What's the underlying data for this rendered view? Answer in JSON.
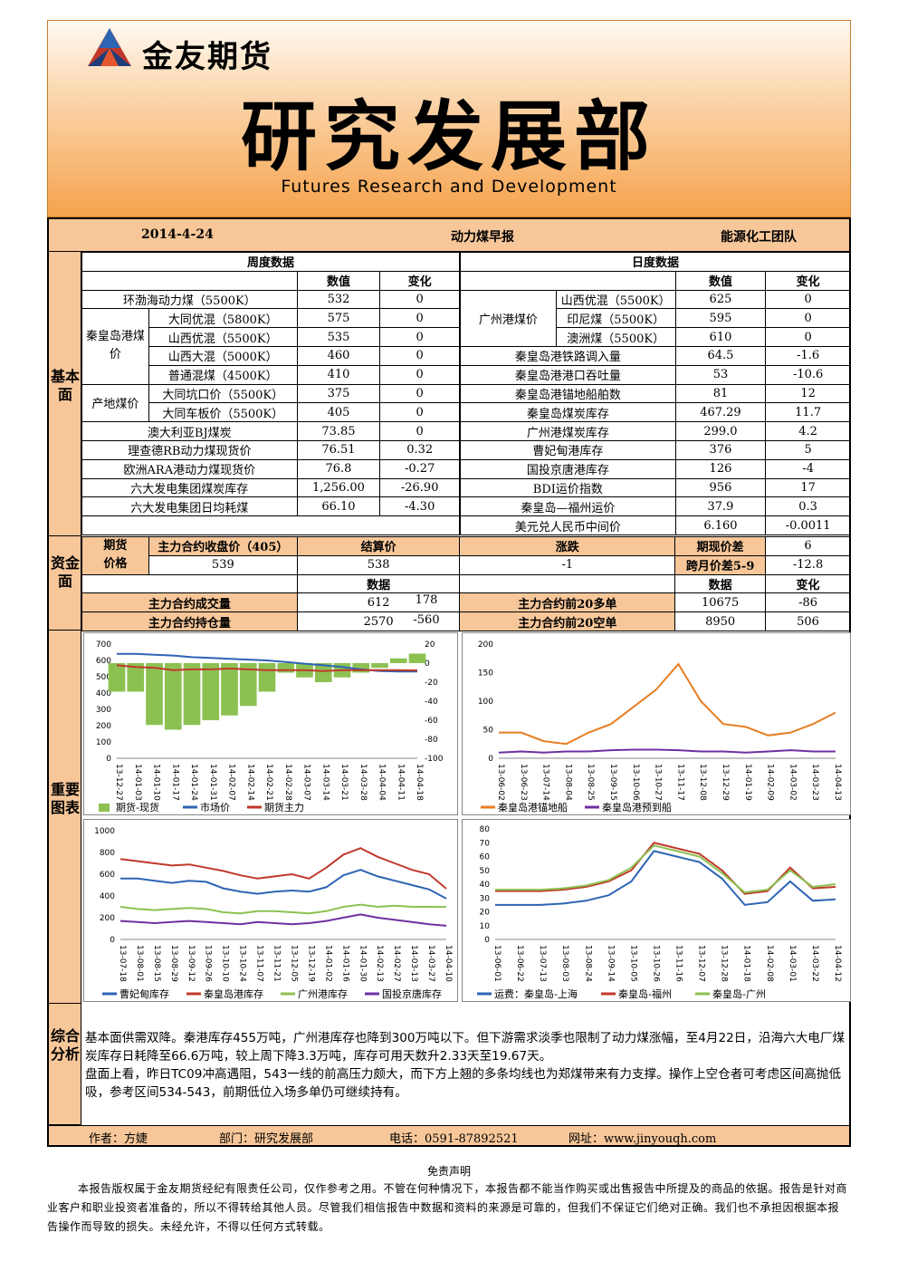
{
  "header": {
    "company": "金友期货",
    "dept_title": "研究发展部",
    "dept_subtitle": "Futures Research and Development"
  },
  "report": {
    "date": "2014-4-24",
    "title": "动力煤早报",
    "team": "能源化工团队"
  },
  "sections": {
    "fundamental": "基本面",
    "capital": "资金面",
    "charts": "重要图表",
    "analysis": "综合分析"
  },
  "weekly": {
    "header": "周度数据",
    "col_value": "数值",
    "col_change": "变化",
    "group_qhd": "秦皇岛港煤价",
    "group_origin": "产地煤价",
    "rows": [
      {
        "label": "环渤海动力煤（5500K）",
        "value": "532",
        "change": "0"
      },
      {
        "label": "大同优混（5800K）",
        "value": "575",
        "change": "0"
      },
      {
        "label": "山西优混（5500K）",
        "value": "535",
        "change": "0"
      },
      {
        "label": "山西大混（5000K）",
        "value": "460",
        "change": "0"
      },
      {
        "label": "普通混煤（4500K）",
        "value": "410",
        "change": "0"
      },
      {
        "label": "大同坑口价（5500K）",
        "value": "375",
        "change": "0"
      },
      {
        "label": "大同车板价（5500K）",
        "value": "405",
        "change": "0"
      },
      {
        "label": "澳大利亚BJ煤炭",
        "value": "73.85",
        "change": "0"
      },
      {
        "label": "理查德RB动力煤现货价",
        "value": "76.51",
        "change": "0.32"
      },
      {
        "label": "欧洲ARA港动力煤现货价",
        "value": "76.8",
        "change": "-0.27"
      },
      {
        "label": "六大发电集团煤炭库存",
        "value": "1,256.00",
        "change": "-26.90"
      },
      {
        "label": "六大发电集团日均耗煤",
        "value": "66.10",
        "change": "-4.30"
      }
    ]
  },
  "daily": {
    "header": "日度数据",
    "col_value": "数值",
    "col_change": "变化",
    "group_gz": "广州港煤价",
    "rows": [
      {
        "label": "山西优混（5500K）",
        "value": "625",
        "change": "0"
      },
      {
        "label": "印尼煤（5500K）",
        "value": "595",
        "change": "0"
      },
      {
        "label": "澳洲煤（5500K）",
        "value": "610",
        "change": "0"
      },
      {
        "label": "秦皇岛港铁路调入量",
        "value": "64.5",
        "change": "-1.6"
      },
      {
        "label": "秦皇岛港港口吞吐量",
        "value": "53",
        "change": "-10.6"
      },
      {
        "label": "秦皇岛港锚地船舶数",
        "value": "81",
        "change": "12"
      },
      {
        "label": "秦皇岛煤炭库存",
        "value": "467.29",
        "change": "11.7"
      },
      {
        "label": "广州港煤炭库存",
        "value": "299.0",
        "change": "4.2"
      },
      {
        "label": "曹妃甸港库存",
        "value": "376",
        "change": "5"
      },
      {
        "label": "国投京唐港库存",
        "value": "126",
        "change": "-4"
      },
      {
        "label": "BDI运价指数",
        "value": "956",
        "change": "17"
      },
      {
        "label": "秦皇岛—福州运价",
        "value": "37.9",
        "change": "0.3"
      },
      {
        "label": "美元兑人民币中间价",
        "value": "6.160",
        "change": "-0.0011"
      }
    ]
  },
  "capital": {
    "futures_price_label1": "期货",
    "futures_price_label2": "价格",
    "close_label": "主力合约收盘价（405）",
    "close_value": "539",
    "settle_label": "结算价",
    "settle_value": "538",
    "change_label": "涨跌",
    "change_value": "-1",
    "spot_basis_label": "期现价差",
    "spot_basis_value": "6",
    "spread_label": "跨月价差5-9",
    "spread_value": "-12.8",
    "col_data": "数据",
    "col_change": "变化",
    "volume_label": "主力合约成交量",
    "volume_value": "612",
    "volume_change": "178",
    "oi_label": "主力合约持仓量",
    "oi_value": "2570",
    "oi_change": "-560",
    "long20_label": "主力合约前20多单",
    "long20_value": "10675",
    "long20_change": "-86",
    "short20_label": "主力合约前20空单",
    "short20_value": "8950",
    "short20_change": "506"
  },
  "chart_data": [
    {
      "type": "line",
      "x": [
        "13-12-27",
        "14-01-03",
        "14-01-10",
        "14-01-17",
        "14-01-24",
        "14-01-31",
        "14-02-07",
        "14-02-14",
        "14-02-21",
        "14-02-28",
        "14-03-07",
        "14-03-14",
        "14-03-21",
        "14-03-28",
        "14-04-04",
        "14-04-11",
        "14-04-18"
      ],
      "ylim": [
        0,
        700
      ],
      "y2lim": [
        -100,
        20
      ],
      "yticks": [
        "0",
        "100",
        "200",
        "300",
        "400",
        "500",
        "600",
        "700"
      ],
      "y2ticks": [
        "-100",
        "-80",
        "-60",
        "-40",
        "-20",
        "0",
        "20"
      ],
      "series": [
        {
          "name": "期货-现货",
          "type": "area",
          "axis": "right",
          "color": "#8cc152",
          "values": [
            -30,
            -30,
            -65,
            -70,
            -65,
            -60,
            -55,
            -45,
            -30,
            -10,
            -15,
            -20,
            -15,
            -10,
            -5,
            5,
            10
          ]
        },
        {
          "name": "市场价",
          "axis": "left",
          "color": "#2e64b4",
          "values": [
            640,
            640,
            635,
            630,
            620,
            615,
            610,
            605,
            600,
            590,
            580,
            570,
            560,
            545,
            535,
            532,
            532
          ]
        },
        {
          "name": "期货主力",
          "axis": "left",
          "color": "#c0392b",
          "values": [
            570,
            560,
            555,
            540,
            545,
            545,
            550,
            545,
            540,
            540,
            540,
            535,
            540,
            540,
            540,
            540,
            539
          ]
        }
      ]
    },
    {
      "type": "line",
      "x": [
        "13-06-02",
        "13-06-23",
        "13-07-14",
        "13-08-04",
        "13-08-25",
        "13-09-15",
        "13-10-06",
        "13-10-27",
        "13-11-17",
        "13-12-08",
        "13-12-29",
        "14-01-19",
        "14-02-09",
        "14-03-02",
        "14-03-23",
        "14-04-13"
      ],
      "ylim": [
        0,
        200
      ],
      "yticks": [
        "0",
        "50",
        "100",
        "150",
        "200"
      ],
      "series": [
        {
          "name": "秦皇岛港锚地船",
          "color": "#e67e22",
          "values": [
            45,
            45,
            30,
            25,
            45,
            60,
            90,
            120,
            165,
            100,
            60,
            55,
            40,
            45,
            60,
            80
          ]
        },
        {
          "name": "秦皇岛港预到船",
          "color": "#7030a0",
          "values": [
            10,
            12,
            10,
            12,
            12,
            14,
            15,
            15,
            14,
            12,
            12,
            10,
            12,
            14,
            12,
            12
          ]
        }
      ]
    },
    {
      "type": "line",
      "x": [
        "13-07-18",
        "13-08-01",
        "13-08-15",
        "13-08-29",
        "13-09-12",
        "13-09-26",
        "13-10-10",
        "13-10-24",
        "13-11-07",
        "13-11-21",
        "13-12-05",
        "13-12-19",
        "14-01-02",
        "14-01-16",
        "14-01-30",
        "14-02-13",
        "14-02-27",
        "14-03-13",
        "14-03-27",
        "14-04-10"
      ],
      "ylim": [
        0,
        1000
      ],
      "yticks": [
        "0",
        "200",
        "400",
        "600",
        "800",
        "1000"
      ],
      "series": [
        {
          "name": "曹妃甸库存",
          "color": "#2e64b4",
          "values": [
            560,
            560,
            540,
            520,
            540,
            530,
            470,
            440,
            420,
            440,
            450,
            440,
            480,
            590,
            640,
            580,
            540,
            500,
            460,
            376
          ]
        },
        {
          "name": "秦皇岛港库存",
          "color": "#c0392b",
          "values": [
            740,
            720,
            700,
            680,
            690,
            660,
            630,
            590,
            560,
            580,
            600,
            560,
            660,
            780,
            840,
            760,
            700,
            640,
            600,
            467
          ]
        },
        {
          "name": "广州港库存",
          "color": "#8cc152",
          "values": [
            300,
            280,
            270,
            280,
            290,
            280,
            250,
            240,
            260,
            260,
            250,
            240,
            260,
            300,
            320,
            300,
            310,
            300,
            300,
            299
          ]
        },
        {
          "name": "国投京唐库存",
          "color": "#7030a0",
          "values": [
            170,
            160,
            150,
            160,
            170,
            160,
            150,
            140,
            160,
            150,
            140,
            150,
            170,
            200,
            230,
            200,
            180,
            160,
            140,
            126
          ]
        }
      ]
    },
    {
      "type": "line",
      "x": [
        "13-06-01",
        "13-06-22",
        "13-07-13",
        "13-08-03",
        "13-08-24",
        "13-09-14",
        "13-10-05",
        "13-10-26",
        "13-11-16",
        "13-12-07",
        "13-12-28",
        "14-01-18",
        "14-02-08",
        "14-03-01",
        "14-03-22",
        "14-04-12"
      ],
      "ylim": [
        0,
        80
      ],
      "yticks": [
        "0",
        "10",
        "20",
        "30",
        "40",
        "50",
        "60",
        "70",
        "80"
      ],
      "series": [
        {
          "name": "运费：秦皇岛-上海",
          "color": "#2e64b4",
          "values": [
            25,
            25,
            25,
            26,
            28,
            32,
            42,
            64,
            60,
            56,
            44,
            25,
            27,
            42,
            28,
            29
          ]
        },
        {
          "name": "秦皇岛-福州",
          "color": "#c0392b",
          "values": [
            35,
            35,
            35,
            36,
            38,
            42,
            50,
            70,
            66,
            62,
            50,
            33,
            35,
            52,
            37,
            38
          ]
        },
        {
          "name": "秦皇岛-广州",
          "color": "#8cc152",
          "values": [
            36,
            36,
            36,
            37,
            39,
            43,
            52,
            68,
            64,
            60,
            48,
            34,
            36,
            50,
            38,
            40
          ]
        }
      ]
    }
  ],
  "analysis": {
    "p1": "基本面供需双降。秦港库存455万吨，广州港库存也降到300万吨以下。但下游需求淡季也限制了动力煤涨幅，至4月22日，沿海六大电厂煤炭库存日耗降至66.6万吨，较上周下降3.3万吨，库存可用天数升2.33天至19.67天。",
    "p2": "盘面上看，昨日TC09冲高遇阻，543一线的前高压力颇大，而下方上翘的多条均线也为郑煤带来有力支撑。操作上空仓者可考虑区间高抛低吸，参考区间534-543，前期低位入场多单仍可继续持有。"
  },
  "footer": {
    "author": "作者：方婕",
    "dept": "部门：研究发展部",
    "phone": "电话：0591-87892521",
    "site": "网址：www.jinyouqh.com"
  },
  "disclaimer": {
    "title": "免责声明",
    "text": "本报告版权属于金友期货经纪有限责任公司，仅作参考之用。不管在何种情况下，本报告都不能当作购买或出售报告中所提及的商品的依据。报告是针对商业客户和职业投资者准备的，所以不得转给其他人员。尽管我们相信报告中数据和资料的来源是可靠的，但我们不保证它们绝对正确。我们也不承担因根据本报告操作而导致的损失。未经允许，不得以任何方式转载。"
  },
  "colors": {
    "header_orange": "#f6a34d",
    "section_fill": "#f7c79a"
  }
}
